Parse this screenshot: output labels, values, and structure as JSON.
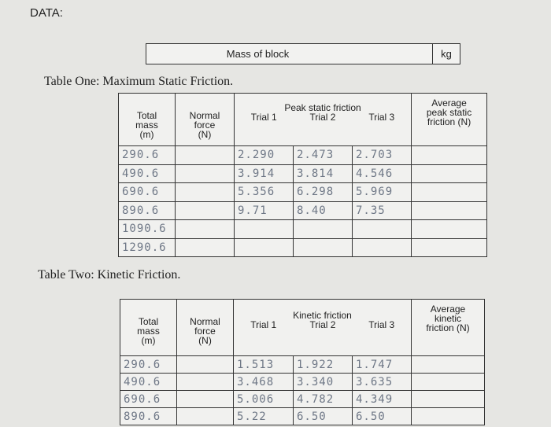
{
  "header": {
    "title": "DATA:"
  },
  "mass_box": {
    "label": "Mass of block",
    "unit": "kg"
  },
  "tables": [
    {
      "title": "Table One: Maximum Static Friction.",
      "columns": {
        "mass": "Total mass (m)",
        "normal": "Normal force (N)",
        "group": "Peak static friction",
        "trials": [
          "Trial 1",
          "Trial 2",
          "Trial 3"
        ],
        "average": "Average peak static friction (N)"
      },
      "rows": [
        {
          "mass": "290.6",
          "trials": [
            "2.290",
            "2.473",
            "2.703"
          ]
        },
        {
          "mass": "490.6",
          "trials": [
            "3.914",
            "3.814",
            "4.546"
          ]
        },
        {
          "mass": "690.6",
          "trials": [
            "5.356",
            "6.298",
            "5.969"
          ]
        },
        {
          "mass": "890.6",
          "trials": [
            "9.71",
            "8.40",
            "7.35"
          ]
        },
        {
          "mass": "1090.6"
        },
        {
          "mass": "1290.6"
        }
      ]
    },
    {
      "title": "Table Two: Kinetic Friction.",
      "columns": {
        "mass": "Total mass (m)",
        "normal": "Normal force (N)",
        "group": "Kinetic friction",
        "trials": [
          "Trial 1",
          "Trial 2",
          "Trial 3"
        ],
        "average": "Average kinetic friction (N)"
      },
      "rows": [
        {
          "mass": "290.6",
          "trials": [
            "1.513",
            "1.922",
            "1.747"
          ]
        },
        {
          "mass": "490.6",
          "trials": [
            "3.468",
            "3.340",
            "3.635"
          ]
        },
        {
          "mass": "690.6",
          "trials": [
            "5.006",
            "4.782",
            "4.349"
          ]
        },
        {
          "mass": "890.6",
          "trials": [
            "5.22",
            "6.50",
            "6.50"
          ]
        }
      ]
    }
  ]
}
